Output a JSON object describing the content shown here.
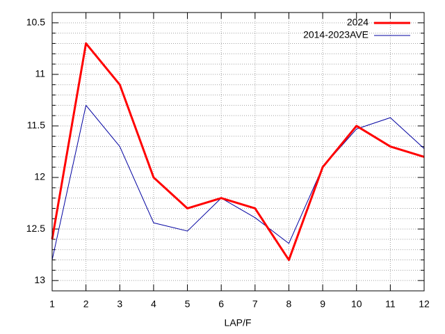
{
  "chart_data": {
    "type": "line",
    "xlabel": "LAP/F",
    "x": [
      1,
      2,
      3,
      4,
      5,
      6,
      7,
      8,
      9,
      10,
      11,
      12
    ],
    "series": [
      {
        "name": "2024",
        "color": "#ff0000",
        "width": 3,
        "values": [
          12.6,
          10.7,
          11.1,
          12.0,
          12.3,
          12.2,
          12.3,
          12.8,
          11.9,
          11.5,
          11.7,
          11.8
        ]
      },
      {
        "name": "2014-2023AVE",
        "color": "#0000a0",
        "width": 1,
        "values": [
          12.8,
          11.3,
          11.7,
          12.44,
          12.52,
          12.2,
          12.39,
          12.64,
          11.9,
          11.53,
          11.42,
          11.72
        ]
      }
    ],
    "xlim": [
      1,
      12
    ],
    "xticks": [
      1,
      2,
      3,
      4,
      5,
      6,
      7,
      8,
      9,
      10,
      11,
      12
    ],
    "ylim": [
      13.1,
      10.4
    ],
    "yticks": [
      10.5,
      11,
      11.5,
      12,
      12.5,
      13
    ],
    "y_minor_per_major": 5,
    "grid": true,
    "legend": "top-right"
  }
}
